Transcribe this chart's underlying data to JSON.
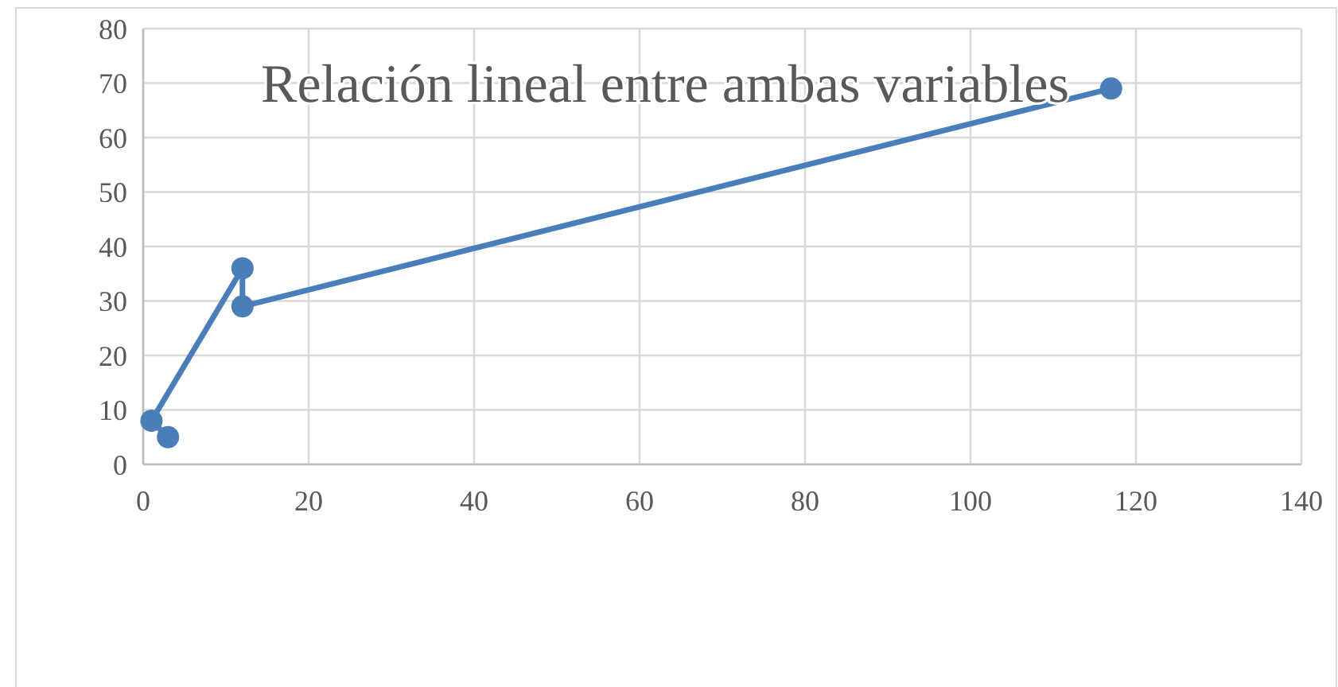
{
  "chart_data": {
    "type": "line",
    "title": "Relación lineal entre ambas variables",
    "series": [
      {
        "color": "#4a7ebb",
        "x": [
          3,
          1,
          12,
          12,
          117
        ],
        "values": [
          5,
          8,
          36,
          29,
          69
        ]
      }
    ],
    "xlim": [
      0,
      140
    ],
    "xticks": [
      0,
      20,
      40,
      60,
      80,
      100,
      120,
      140
    ],
    "ylim": [
      0,
      80
    ],
    "yticks": [
      0,
      10,
      20,
      30,
      40,
      50,
      60,
      70,
      80
    ],
    "grid": true,
    "marker": "circle",
    "line_style": "solid"
  }
}
